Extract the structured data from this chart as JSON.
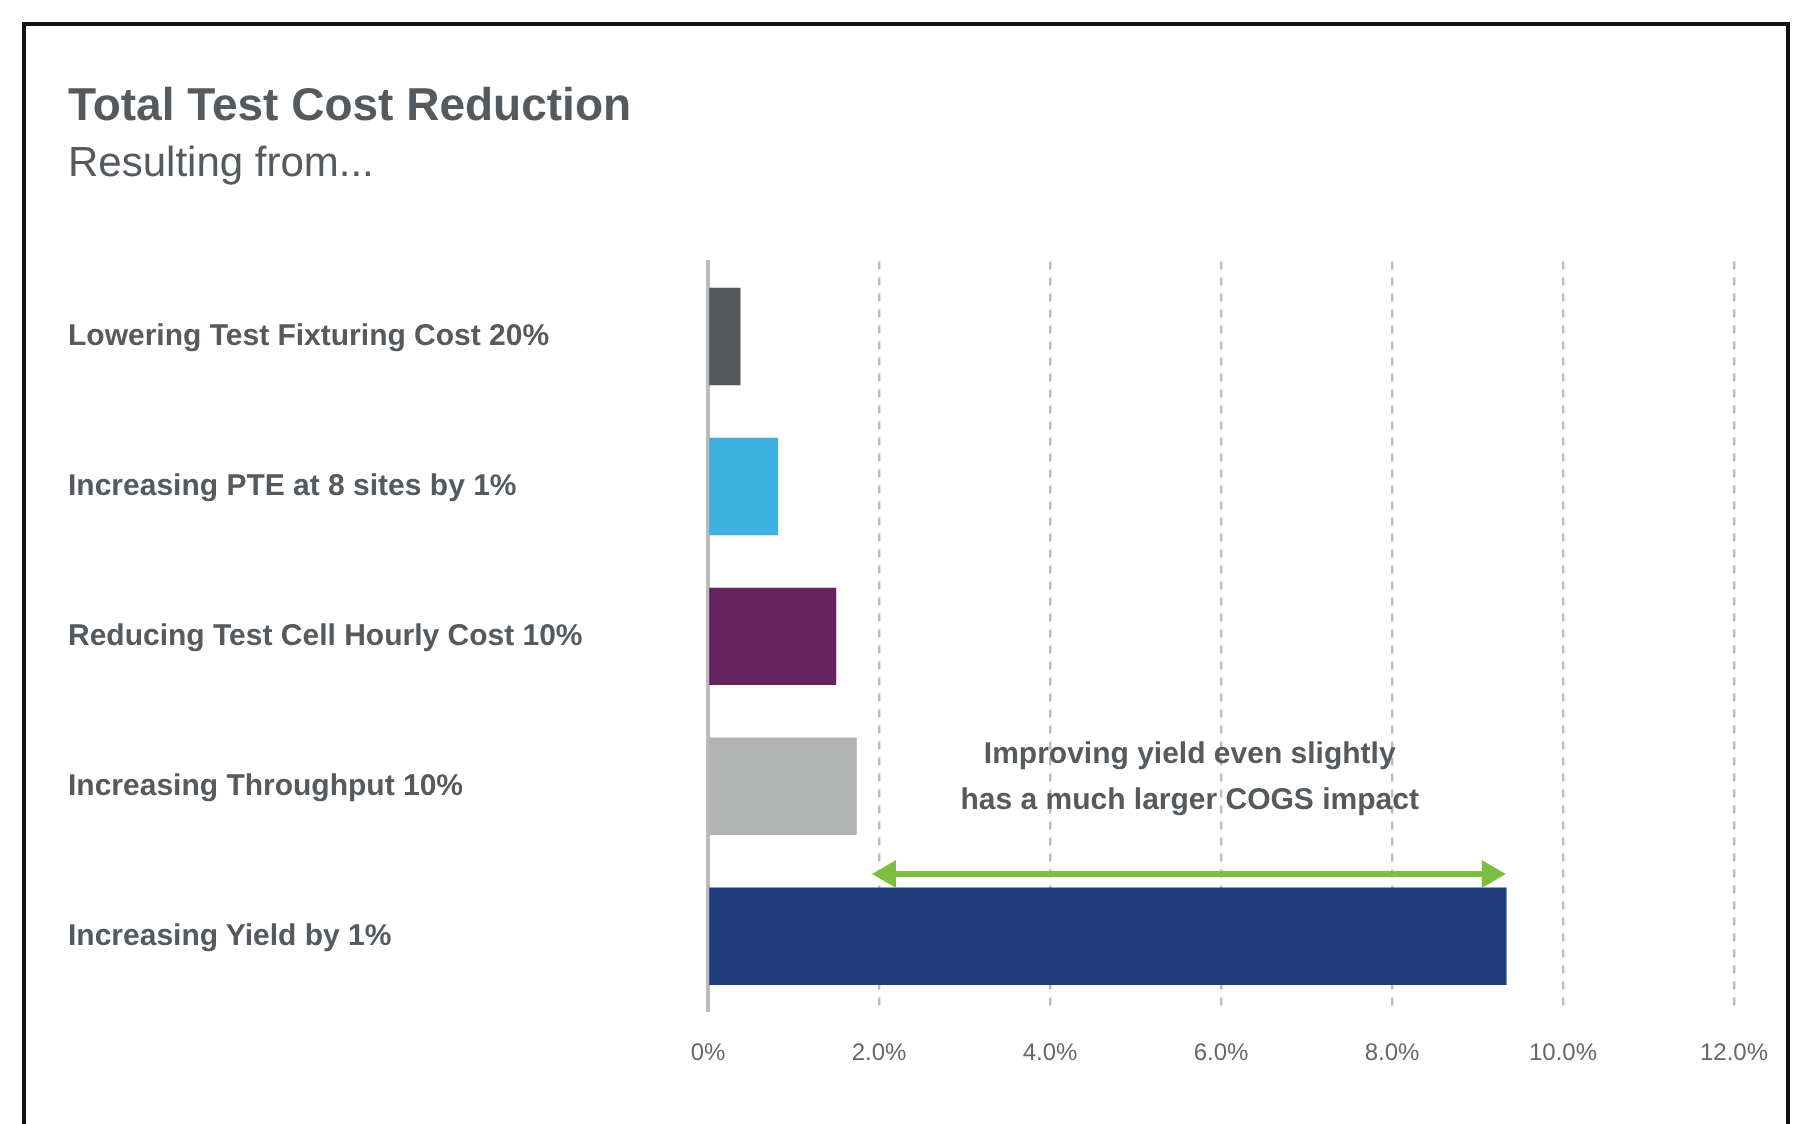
{
  "chart_data": {
    "type": "bar",
    "orientation": "horizontal",
    "title": "Total Test Cost Reduction",
    "subtitle": "Resulting from...",
    "categories": [
      "Lowering Test Fixturing Cost 20%",
      "Increasing PTE at 8 sites by 1%",
      "Reducing Test Cell Hourly Cost 10%",
      "Increasing Throughput 10%",
      "Increasing Yield by 1%"
    ],
    "values": [
      0.38,
      0.82,
      1.5,
      1.74,
      9.34
    ],
    "colors": [
      "#54585b",
      "#3db0e0",
      "#65235f",
      "#b1b3b3",
      "#203c7a"
    ],
    "xlim": [
      0,
      12
    ],
    "xticks": [
      {
        "value": 0,
        "label": "0%"
      },
      {
        "value": 2,
        "label": "2.0%"
      },
      {
        "value": 4,
        "label": "4.0%"
      },
      {
        "value": 6,
        "label": "6.0%"
      },
      {
        "value": 8,
        "label": "8.0%"
      },
      {
        "value": 10,
        "label": "10.0%"
      },
      {
        "value": 12,
        "label": "12.0%"
      }
    ],
    "grid": "x",
    "legend": false,
    "annotations": [
      "Improving yield even slightly\nhas a much larger COGS impact"
    ]
  }
}
